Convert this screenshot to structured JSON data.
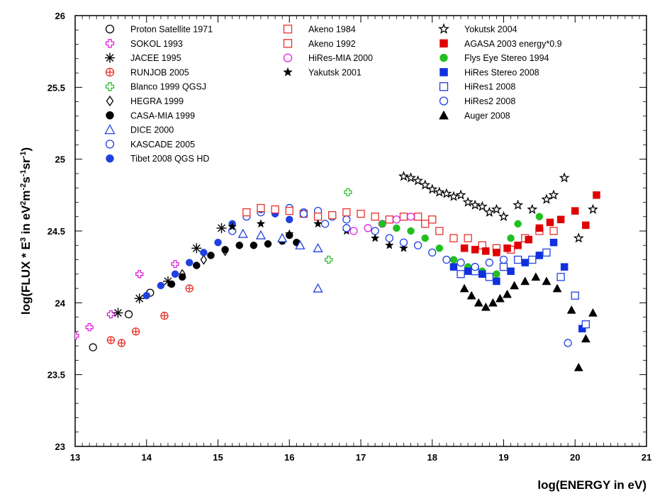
{
  "chart_data": {
    "type": "scatter",
    "title": "",
    "xlabel": "log(ENERGY in eV)",
    "ylabel_parts": [
      "log(FLUX * E",
      "3",
      " in eV",
      "2",
      "m",
      "-2",
      "s",
      "-1",
      "sr",
      "-1",
      ")"
    ],
    "xlim": [
      13,
      21
    ],
    "ylim": [
      23,
      26
    ],
    "xticks": [
      "13",
      "14",
      "15",
      "16",
      "17",
      "18",
      "19",
      "20",
      "21"
    ],
    "yticks": [
      "23",
      "23.5",
      "24",
      "24.5",
      "25",
      "25.5",
      "26"
    ],
    "legend_placement": "top",
    "series": [
      {
        "name": "Proton Satellite 1971",
        "marker": "open-circle",
        "color": "#000000",
        "points": [
          [
            13.25,
            23.69
          ],
          [
            13.75,
            23.92
          ],
          [
            14.05,
            24.07
          ]
        ]
      },
      {
        "name": "SOKOL 1993",
        "marker": "open-cross",
        "color": "#e020e0",
        "points": [
          [
            13.0,
            23.77
          ],
          [
            13.2,
            23.83
          ],
          [
            13.5,
            23.92
          ],
          [
            13.9,
            24.2
          ],
          [
            14.4,
            24.27
          ]
        ]
      },
      {
        "name": "JACEE 1995",
        "marker": "asterisk",
        "color": "#000000",
        "points": [
          [
            13.6,
            23.93
          ],
          [
            13.9,
            24.03
          ],
          [
            14.3,
            24.15
          ],
          [
            14.7,
            24.38
          ],
          [
            15.05,
            24.52
          ]
        ]
      },
      {
        "name": "RUNJOB 2005",
        "marker": "open-circle-cross",
        "color": "#e8302a",
        "points": [
          [
            13.5,
            23.74
          ],
          [
            13.65,
            23.72
          ],
          [
            13.85,
            23.8
          ],
          [
            14.25,
            23.91
          ],
          [
            14.6,
            24.1
          ]
        ]
      },
      {
        "name": "Blanco 1999 QGSJ",
        "marker": "open-cross",
        "color": "#30c030",
        "points": [
          [
            16.55,
            24.3
          ],
          [
            16.82,
            24.77
          ]
        ]
      },
      {
        "name": "HEGRA 1999",
        "marker": "diamond",
        "color": "#000000",
        "points": [
          [
            14.5,
            24.2
          ],
          [
            14.8,
            24.3
          ],
          [
            15.1,
            24.36
          ]
        ]
      },
      {
        "name": "CASA-MIA 1999",
        "marker": "filled-circle",
        "color": "#000000",
        "points": [
          [
            14.35,
            24.13
          ],
          [
            14.5,
            24.18
          ],
          [
            14.7,
            24.26
          ],
          [
            14.9,
            24.33
          ],
          [
            15.1,
            24.37
          ],
          [
            15.3,
            24.4
          ],
          [
            15.5,
            24.4
          ],
          [
            15.7,
            24.41
          ],
          [
            15.9,
            24.43
          ],
          [
            16.0,
            24.47
          ],
          [
            16.1,
            24.42
          ]
        ]
      },
      {
        "name": "DICE 2000",
        "marker": "open-triangle",
        "color": "#2040e0",
        "points": [
          [
            15.35,
            24.48
          ],
          [
            15.6,
            24.47
          ],
          [
            15.9,
            24.45
          ],
          [
            16.15,
            24.4
          ],
          [
            16.4,
            24.38
          ],
          [
            16.4,
            24.1
          ]
        ]
      },
      {
        "name": "KASCADE 2005",
        "marker": "open-circle",
        "color": "#2040e0",
        "points": [
          [
            15.2,
            24.5
          ],
          [
            15.4,
            24.6
          ],
          [
            15.6,
            24.63
          ],
          [
            15.8,
            24.65
          ],
          [
            16.0,
            24.66
          ],
          [
            16.2,
            24.63
          ],
          [
            16.4,
            24.64
          ],
          [
            16.6,
            24.6
          ],
          [
            16.8,
            24.58
          ]
        ]
      },
      {
        "name": "Tibet 2008 QGS HD",
        "marker": "filled-circle",
        "color": "#2040e0",
        "points": [
          [
            14.0,
            24.05
          ],
          [
            14.2,
            24.12
          ],
          [
            14.4,
            24.2
          ],
          [
            14.6,
            24.28
          ],
          [
            14.8,
            24.35
          ],
          [
            15.0,
            24.42
          ],
          [
            15.2,
            24.55
          ],
          [
            15.4,
            24.63
          ],
          [
            15.6,
            24.65
          ],
          [
            15.8,
            24.62
          ],
          [
            16.0,
            24.58
          ]
        ]
      },
      {
        "name": "Akeno 1984",
        "marker": "open-square",
        "color": "#e8302a",
        "points": [
          [
            15.4,
            24.63
          ],
          [
            15.6,
            24.66
          ],
          [
            15.8,
            24.65
          ],
          [
            16.0,
            24.64
          ],
          [
            16.2,
            24.62
          ],
          [
            16.4,
            24.6
          ],
          [
            16.6,
            24.61
          ],
          [
            16.8,
            24.63
          ],
          [
            17.0,
            24.62
          ],
          [
            17.2,
            24.6
          ],
          [
            17.4,
            24.58
          ],
          [
            17.6,
            24.6
          ],
          [
            17.8,
            24.6
          ],
          [
            18.0,
            24.58
          ]
        ]
      },
      {
        "name": "Akeno 1992",
        "marker": "open-square",
        "color": "#e8302a",
        "points": [
          [
            17.9,
            24.55
          ],
          [
            18.1,
            24.5
          ],
          [
            18.3,
            24.45
          ],
          [
            18.5,
            24.45
          ],
          [
            18.7,
            24.4
          ],
          [
            18.9,
            24.38
          ],
          [
            19.1,
            24.37
          ],
          [
            19.3,
            24.45
          ],
          [
            19.5,
            24.5
          ],
          [
            19.7,
            24.5
          ]
        ]
      },
      {
        "name": "HiRes-MIA 2000",
        "marker": "open-circle",
        "color": "#e020e0",
        "points": [
          [
            16.9,
            24.5
          ],
          [
            17.1,
            24.52
          ],
          [
            17.3,
            24.55
          ],
          [
            17.5,
            24.58
          ],
          [
            17.7,
            24.6
          ]
        ]
      },
      {
        "name": "Yakutsk 2001",
        "marker": "filled-star",
        "color": "#000000",
        "points": [
          [
            15.2,
            24.53
          ],
          [
            15.6,
            24.55
          ],
          [
            16.0,
            24.48
          ],
          [
            16.4,
            24.55
          ],
          [
            16.8,
            24.5
          ],
          [
            17.2,
            24.45
          ],
          [
            17.4,
            24.4
          ],
          [
            17.6,
            24.38
          ]
        ]
      },
      {
        "name": "Yokutsk 2004",
        "marker": "open-star",
        "color": "#000000",
        "points": [
          [
            17.6,
            24.88
          ],
          [
            17.7,
            24.87
          ],
          [
            17.8,
            24.85
          ],
          [
            17.9,
            24.82
          ],
          [
            18.0,
            24.79
          ],
          [
            18.1,
            24.77
          ],
          [
            18.2,
            24.76
          ],
          [
            18.3,
            24.74
          ],
          [
            18.4,
            24.75
          ],
          [
            18.5,
            24.7
          ],
          [
            18.6,
            24.68
          ],
          [
            18.7,
            24.67
          ],
          [
            18.8,
            24.63
          ],
          [
            18.9,
            24.65
          ],
          [
            19.0,
            24.6
          ],
          [
            19.2,
            24.68
          ],
          [
            19.4,
            24.65
          ],
          [
            19.6,
            24.72
          ],
          [
            19.7,
            24.75
          ],
          [
            19.85,
            24.87
          ],
          [
            20.05,
            24.45
          ],
          [
            20.25,
            24.65
          ]
        ]
      },
      {
        "name": "AGASA 2003  energy*0.9",
        "marker": "filled-square",
        "color": "#e00000",
        "points": [
          [
            18.45,
            24.38
          ],
          [
            18.6,
            24.37
          ],
          [
            18.75,
            24.36
          ],
          [
            18.9,
            24.35
          ],
          [
            19.05,
            24.38
          ],
          [
            19.2,
            24.4
          ],
          [
            19.35,
            24.44
          ],
          [
            19.5,
            24.52
          ],
          [
            19.65,
            24.56
          ],
          [
            19.8,
            24.58
          ],
          [
            20.0,
            24.64
          ],
          [
            20.15,
            24.54
          ],
          [
            20.3,
            24.75
          ]
        ]
      },
      {
        "name": "Flys Eye Stereo 1994",
        "marker": "filled-circle",
        "color": "#20c020",
        "points": [
          [
            17.3,
            24.55
          ],
          [
            17.5,
            24.52
          ],
          [
            17.7,
            24.5
          ],
          [
            17.9,
            24.45
          ],
          [
            18.1,
            24.38
          ],
          [
            18.3,
            24.3
          ],
          [
            18.5,
            24.25
          ],
          [
            18.7,
            24.22
          ],
          [
            18.9,
            24.2
          ],
          [
            19.1,
            24.45
          ],
          [
            19.2,
            24.55
          ],
          [
            19.5,
            24.6
          ]
        ]
      },
      {
        "name": "HiRes Stereo 2008",
        "marker": "filled-square",
        "color": "#1030e0",
        "points": [
          [
            18.3,
            24.25
          ],
          [
            18.5,
            24.22
          ],
          [
            18.7,
            24.2
          ],
          [
            18.9,
            24.15
          ],
          [
            19.1,
            24.22
          ],
          [
            19.3,
            24.28
          ],
          [
            19.5,
            24.33
          ],
          [
            19.7,
            24.42
          ],
          [
            19.85,
            24.25
          ],
          [
            20.1,
            23.82
          ]
        ]
      },
      {
        "name": "HiRes1 2008",
        "marker": "open-square",
        "color": "#2040e0",
        "points": [
          [
            18.4,
            24.2
          ],
          [
            18.6,
            24.22
          ],
          [
            18.8,
            24.18
          ],
          [
            19.0,
            24.25
          ],
          [
            19.2,
            24.3
          ],
          [
            19.4,
            24.3
          ],
          [
            19.6,
            24.35
          ],
          [
            19.8,
            24.18
          ],
          [
            20.0,
            24.05
          ],
          [
            20.15,
            23.85
          ]
        ]
      },
      {
        "name": "HiRes2 2008",
        "marker": "open-circle",
        "color": "#2040e0",
        "points": [
          [
            16.2,
            24.62
          ],
          [
            16.5,
            24.55
          ],
          [
            16.8,
            24.52
          ],
          [
            17.2,
            24.5
          ],
          [
            17.4,
            24.45
          ],
          [
            17.6,
            24.42
          ],
          [
            17.8,
            24.4
          ],
          [
            18.0,
            24.35
          ],
          [
            18.2,
            24.3
          ],
          [
            18.4,
            24.28
          ],
          [
            18.6,
            24.25
          ],
          [
            18.8,
            24.28
          ],
          [
            19.0,
            24.3
          ],
          [
            19.9,
            23.72
          ]
        ]
      },
      {
        "name": "Auger 2008",
        "marker": "filled-triangle",
        "color": "#000000",
        "points": [
          [
            18.45,
            24.1
          ],
          [
            18.55,
            24.05
          ],
          [
            18.65,
            24.0
          ],
          [
            18.75,
            23.97
          ],
          [
            18.85,
            24.0
          ],
          [
            18.95,
            24.03
          ],
          [
            19.05,
            24.06
          ],
          [
            19.15,
            24.12
          ],
          [
            19.3,
            24.15
          ],
          [
            19.45,
            24.18
          ],
          [
            19.6,
            24.15
          ],
          [
            19.75,
            24.1
          ],
          [
            19.95,
            23.95
          ],
          [
            20.05,
            23.55
          ],
          [
            20.15,
            23.75
          ],
          [
            20.25,
            23.93
          ]
        ]
      }
    ]
  }
}
